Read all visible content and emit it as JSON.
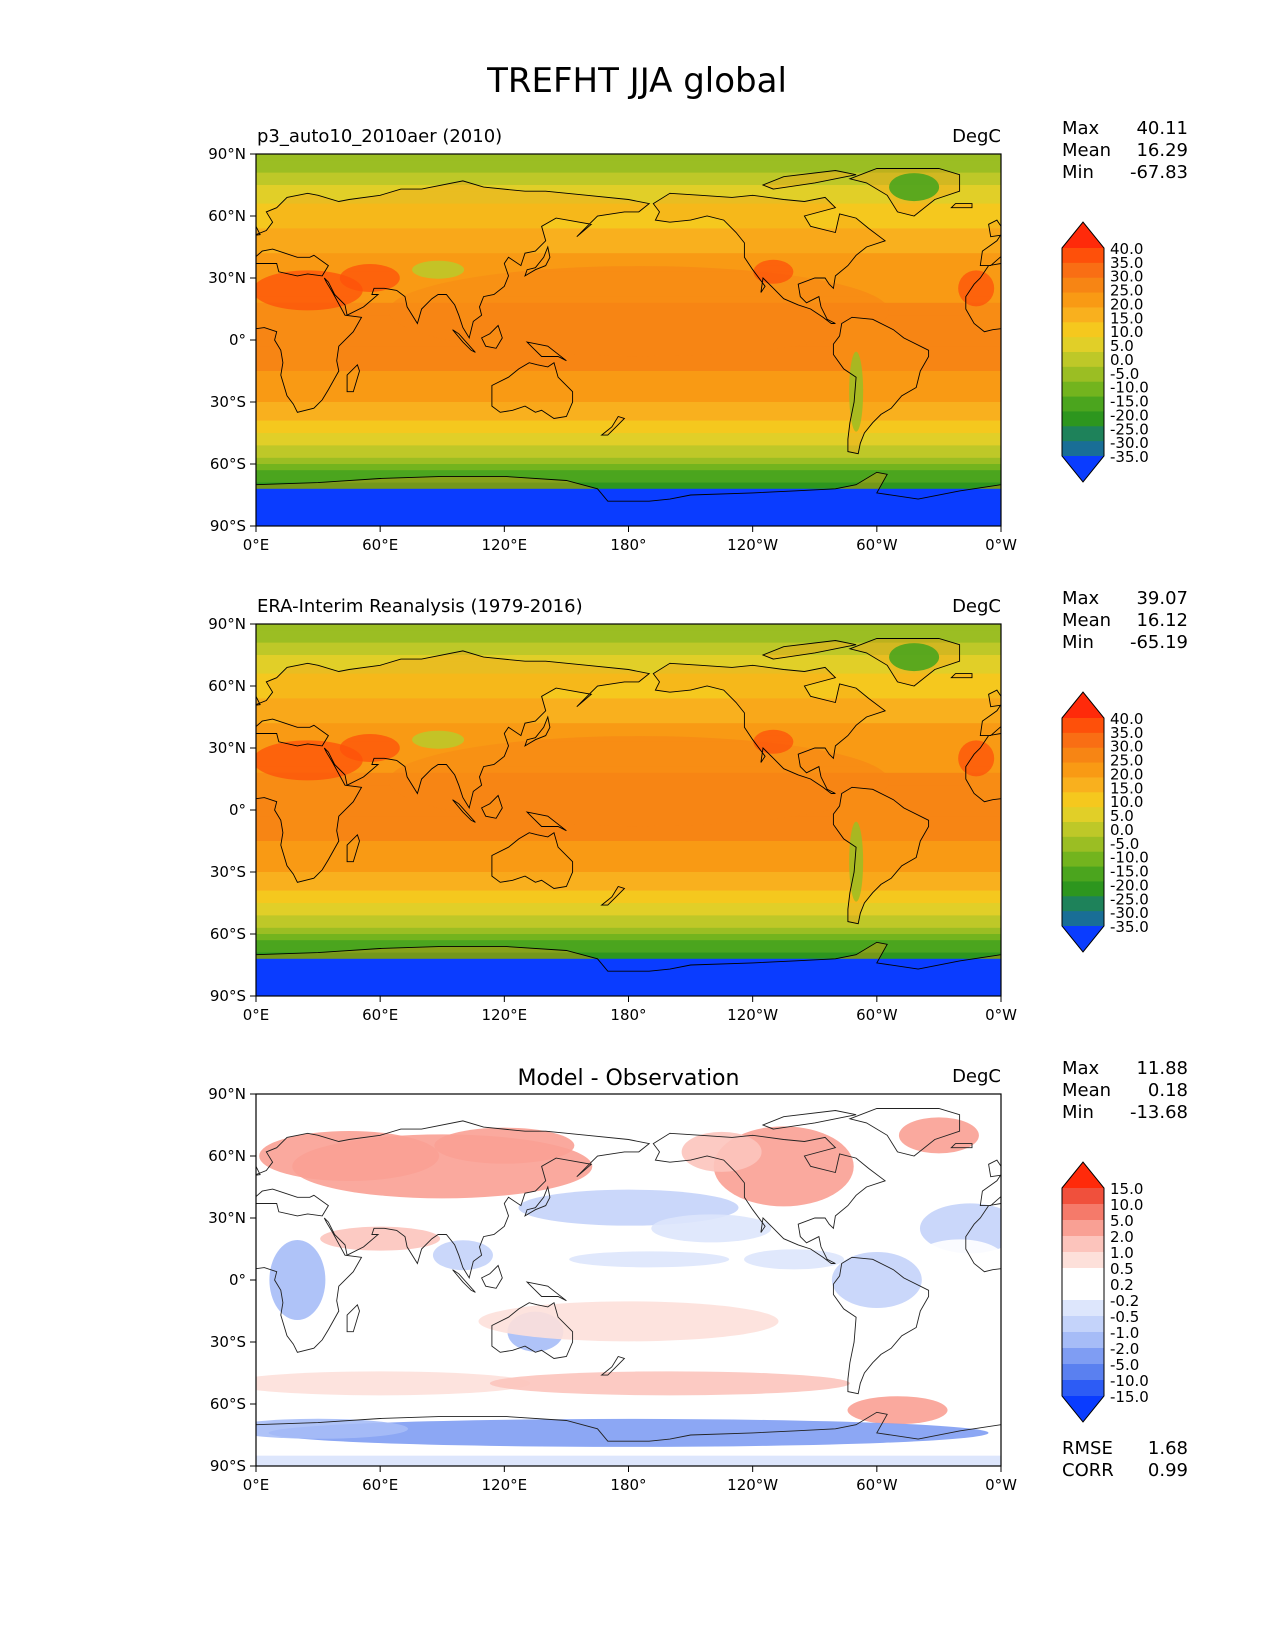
{
  "page_title": "TREFHT JJA global",
  "colors": {
    "ocean_deep_blue": "#0a3cff",
    "land_outline": "#000000",
    "diff_red": "#f0503c",
    "diff_blue": "#3c6cf0"
  },
  "chart_data": [
    {
      "type": "heatmap",
      "id": "test",
      "title": "",
      "subtitle_left": "p3_auto10_2010aer (2010)",
      "units": "DegC",
      "stats": {
        "max_label": "Max",
        "max": "40.11",
        "mean_label": "Mean",
        "mean": "16.29",
        "min_label": "Min",
        "min": "-67.83"
      },
      "field": {
        "equator": 26,
        "north_pole": -6,
        "south_pole": -55,
        "min_value": -67.83,
        "max_value": 40.11
      },
      "colorbar": {
        "levels": [
          "40.0",
          "35.0",
          "30.0",
          "25.0",
          "20.0",
          "15.0",
          "10.0",
          "5.0",
          "0.0",
          "-5.0",
          "-10.0",
          "-15.0",
          "-20.0",
          "-25.0",
          "-30.0",
          "-35.0"
        ],
        "colors": [
          "#ff2a0a",
          "#fe500a",
          "#f96e14",
          "#f78514",
          "#f99a14",
          "#f9b01e",
          "#f5c81e",
          "#e1cf28",
          "#bec828",
          "#9bbe23",
          "#73b41e",
          "#4ba51e",
          "#2d961e",
          "#1e825a",
          "#196e96",
          "#0a3cff"
        ]
      },
      "x_ticks": [
        "0°E",
        "60°E",
        "120°E",
        "180°",
        "120°W",
        "60°W",
        "0°W"
      ],
      "y_ticks": [
        "90°N",
        "60°N",
        "30°N",
        "0°",
        "30°S",
        "60°S",
        "90°S"
      ],
      "x_ticks_lon": [
        0,
        60,
        120,
        180,
        240,
        300,
        360
      ],
      "y_ticks_lat": [
        90,
        60,
        30,
        0,
        -30,
        -60,
        -90
      ]
    },
    {
      "type": "heatmap",
      "id": "reference",
      "title": "",
      "subtitle_left": "ERA-Interim Reanalysis (1979-2016)",
      "units": "DegC",
      "stats": {
        "max_label": "Max",
        "max": "39.07",
        "mean_label": "Mean",
        "mean": "16.12",
        "min_label": "Min",
        "min": "-65.19"
      },
      "field": {
        "equator": 26,
        "north_pole": -6,
        "south_pole": -55,
        "min_value": -65.19,
        "max_value": 39.07
      },
      "colorbar": {
        "levels": [
          "40.0",
          "35.0",
          "30.0",
          "25.0",
          "20.0",
          "15.0",
          "10.0",
          "5.0",
          "0.0",
          "-5.0",
          "-10.0",
          "-15.0",
          "-20.0",
          "-25.0",
          "-30.0",
          "-35.0"
        ],
        "colors": [
          "#ff2a0a",
          "#fe500a",
          "#f96e14",
          "#f78514",
          "#f99a14",
          "#f9b01e",
          "#f5c81e",
          "#e1cf28",
          "#bec828",
          "#9bbe23",
          "#73b41e",
          "#4ba51e",
          "#2d961e",
          "#1e825a",
          "#196e96",
          "#0a3cff"
        ]
      },
      "x_ticks": [
        "0°E",
        "60°E",
        "120°E",
        "180°",
        "120°W",
        "60°W",
        "0°W"
      ],
      "y_ticks": [
        "90°N",
        "60°N",
        "30°N",
        "0°",
        "30°S",
        "60°S",
        "90°S"
      ],
      "x_ticks_lon": [
        0,
        60,
        120,
        180,
        240,
        300,
        360
      ],
      "y_ticks_lat": [
        90,
        60,
        30,
        0,
        -30,
        -60,
        -90
      ]
    },
    {
      "type": "heatmap",
      "id": "difference",
      "title": "Model - Observation",
      "subtitle_left": "",
      "units": "DegC",
      "stats": {
        "max_label": "Max",
        "max": "11.88",
        "mean_label": "Mean",
        "mean": "0.18",
        "min_label": "Min",
        "min": "-13.68"
      },
      "extra_stats": {
        "rmse_label": "RMSE",
        "rmse": "1.68",
        "corr_label": "CORR",
        "corr": "0.99"
      },
      "field": {
        "min_value": -13.68,
        "max_value": 11.88,
        "mean": 0.18
      },
      "colorbar": {
        "levels": [
          "15.0",
          "10.0",
          "5.0",
          "2.0",
          "1.0",
          "0.5",
          "0.2",
          "-0.2",
          "-0.5",
          "-1.0",
          "-2.0",
          "-5.0",
          "-10.0",
          "-15.0"
        ],
        "colors": [
          "#ff2a0a",
          "#f0503c",
          "#f57a6a",
          "#f9a094",
          "#fcc4bc",
          "#fde0da",
          "#ffffff",
          "#ffffff",
          "#dde6fc",
          "#c4d3fa",
          "#a6bcf7",
          "#7f9df3",
          "#5a80f0",
          "#2d5cf5",
          "#0a3cff"
        ]
      },
      "x_ticks": [
        "0°E",
        "60°E",
        "120°E",
        "180°",
        "120°W",
        "60°W",
        "0°W"
      ],
      "y_ticks": [
        "90°N",
        "60°N",
        "30°N",
        "0°",
        "30°S",
        "60°S",
        "90°S"
      ],
      "x_ticks_lon": [
        0,
        60,
        120,
        180,
        240,
        300,
        360
      ],
      "y_ticks_lat": [
        90,
        60,
        30,
        0,
        -30,
        -60,
        -90
      ]
    }
  ]
}
